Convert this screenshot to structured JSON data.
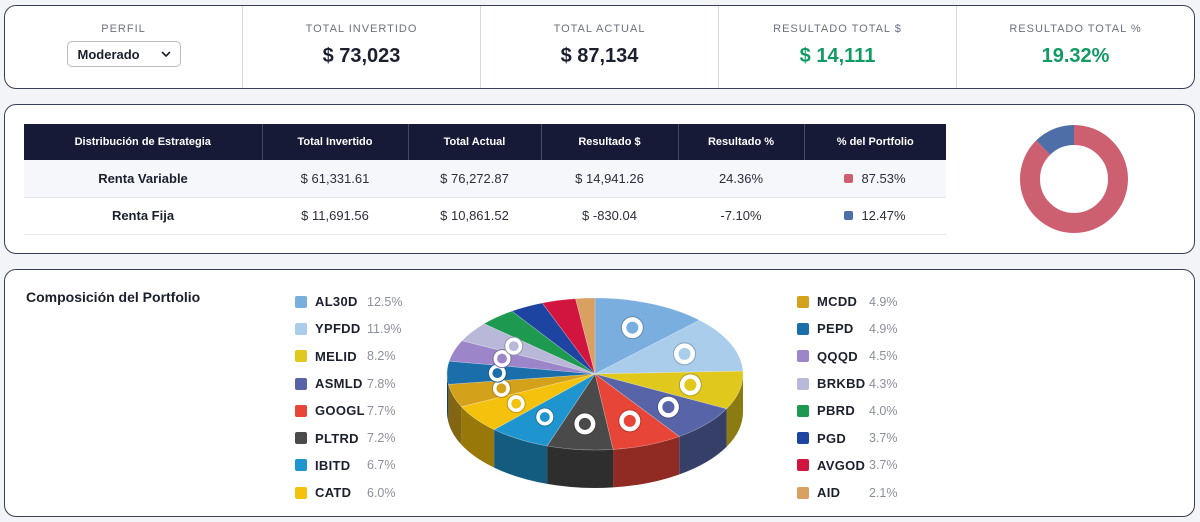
{
  "summary": {
    "perfil": {
      "label": "PERFIL",
      "value": "Moderado"
    },
    "total_invertido": {
      "label": "TOTAL INVERTIDO",
      "value": "$ 73,023"
    },
    "total_actual": {
      "label": "TOTAL ACTUAL",
      "value": "$ 87,134"
    },
    "resultado_total": {
      "label": "RESULTADO TOTAL $",
      "value": "$ 14,111"
    },
    "resultado_pct": {
      "label": "RESULTADO TOTAL %",
      "value": "19.32%"
    }
  },
  "strategy": {
    "headers": [
      "Distribución de Estrategia",
      "Total Invertido",
      "Total Actual",
      "Resultado $",
      "Resultado %",
      "% del Portfolio"
    ],
    "rows": [
      {
        "name": "Renta Variable",
        "invested": "$ 61,331.61",
        "current": "$ 76,272.87",
        "result": "$ 14,941.26",
        "result_pct": "24.36%",
        "portfolio_pct": "87.53%",
        "share": 87.53,
        "color": "#cd6070",
        "sign": "pos"
      },
      {
        "name": "Renta Fija",
        "invested": "$ 11,691.56",
        "current": "$ 10,861.52",
        "result": "$ -830.04",
        "result_pct": "-7.10%",
        "portfolio_pct": "12.47%",
        "share": 12.47,
        "color": "#4e6ea8",
        "sign": "neg"
      }
    ]
  },
  "composition": {
    "title": "Composición del Portfolio",
    "left": [
      {
        "ticker": "AL30D",
        "pct": "12.5%",
        "value": 12.5,
        "icon": "argentina-flag-icon",
        "color": "#7aaedf"
      },
      {
        "ticker": "YPFDD",
        "pct": "11.9%",
        "value": 11.9,
        "icon": "ypf-logo-icon",
        "color": "#a9cdea"
      },
      {
        "ticker": "MELID",
        "pct": "8.2%",
        "value": 8.2,
        "icon": "mercadolibre-logo-icon",
        "color": "#e0c81d"
      },
      {
        "ticker": "ASMLD",
        "pct": "7.8%",
        "value": 7.8,
        "icon": "asml-logo-icon",
        "color": "#5765a8"
      },
      {
        "ticker": "GOOGL",
        "pct": "7.7%",
        "value": 7.7,
        "icon": "google-logo-icon",
        "color": "#e74537"
      },
      {
        "ticker": "PLTRD",
        "pct": "7.2%",
        "value": 7.2,
        "icon": "palantir-logo-icon",
        "color": "#4a4a4a"
      },
      {
        "ticker": "IBITD",
        "pct": "6.7%",
        "value": 6.7,
        "icon": "ibit-logo-icon",
        "color": "#1f95cf"
      },
      {
        "ticker": "CATD",
        "pct": "6.0%",
        "value": 6.0,
        "icon": "caterpillar-logo-icon",
        "color": "#f4c20d"
      }
    ],
    "right": [
      {
        "ticker": "MCDD",
        "pct": "4.9%",
        "value": 4.9,
        "icon": "mcdonalds-logo-icon",
        "color": "#d3a21a"
      },
      {
        "ticker": "PEPD",
        "pct": "4.9%",
        "value": 4.9,
        "icon": "pepsico-logo-icon",
        "color": "#1a6fab"
      },
      {
        "ticker": "QQQD",
        "pct": "4.5%",
        "value": 4.5,
        "icon": "invesco-logo-icon",
        "color": "#9c86c9"
      },
      {
        "ticker": "BRKBD",
        "pct": "4.3%",
        "value": 4.3,
        "icon": "berkshire-logo-icon",
        "color": "#b9b8d9"
      },
      {
        "ticker": "PBRD",
        "pct": "4.0%",
        "value": 4.0,
        "icon": "petrobras-logo-icon",
        "color": "#1e9950"
      },
      {
        "ticker": "PGD",
        "pct": "3.7%",
        "value": 3.7,
        "icon": "pg-logo-icon",
        "color": "#1d44a0"
      },
      {
        "ticker": "AVGOD",
        "pct": "3.7%",
        "value": 3.7,
        "icon": "broadcom-logo-icon",
        "color": "#d2153f"
      },
      {
        "ticker": "AID",
        "pct": "2.1%",
        "value": 2.1,
        "icon": "c3ai-logo-icon",
        "color": "#d9a062"
      }
    ]
  }
}
